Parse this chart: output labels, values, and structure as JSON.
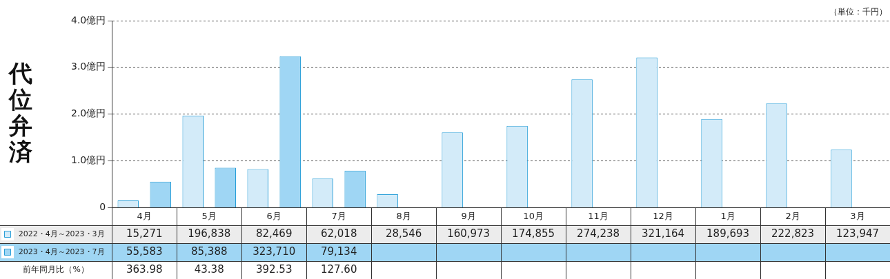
{
  "chart_data": {
    "type": "bar",
    "ylabel": "代位弁済",
    "categories": [
      "4月",
      "5月",
      "6月",
      "7月",
      "8月",
      "9月",
      "10月",
      "11月",
      "12月",
      "1月",
      "2月",
      "3月"
    ],
    "series": [
      {
        "name": "2022・4月～2023・3月",
        "color": "#d3ebf9",
        "values": [
          0.15271,
          1.96838,
          0.82469,
          0.62018,
          0.28546,
          1.60973,
          1.74855,
          2.74238,
          3.21164,
          1.89693,
          2.22823,
          1.23947
        ]
      },
      {
        "name": "2023・4月～2023・7月",
        "color": "#9fd6f4",
        "values": [
          0.55583,
          0.85388,
          3.2371,
          0.79134,
          null,
          null,
          null,
          null,
          null,
          null,
          null,
          null
        ]
      }
    ],
    "ylim": [
      0,
      4
    ],
    "yticks": [
      0,
      {
        "value": 1,
        "label": "1.0億円"
      },
      {
        "value": 2,
        "label": "2.0億円"
      },
      {
        "value": 3,
        "label": "3.0億円"
      },
      {
        "value": 4,
        "label": "4.0億円"
      }
    ],
    "grid": "y",
    "legend": "bottom left",
    "annotations": [
      "（単位：千円）",
      "15,271",
      "196,838",
      "82,469",
      "62,018",
      "28,546",
      "160,973",
      "174,855",
      "274,238",
      "321,164",
      "189,693",
      "222,823",
      "123,947",
      "55,583",
      "85,388",
      "323,710",
      "79,134",
      "前年同月比（%）",
      "363.98",
      "43.38",
      "392.53",
      "127.60"
    ]
  }
}
